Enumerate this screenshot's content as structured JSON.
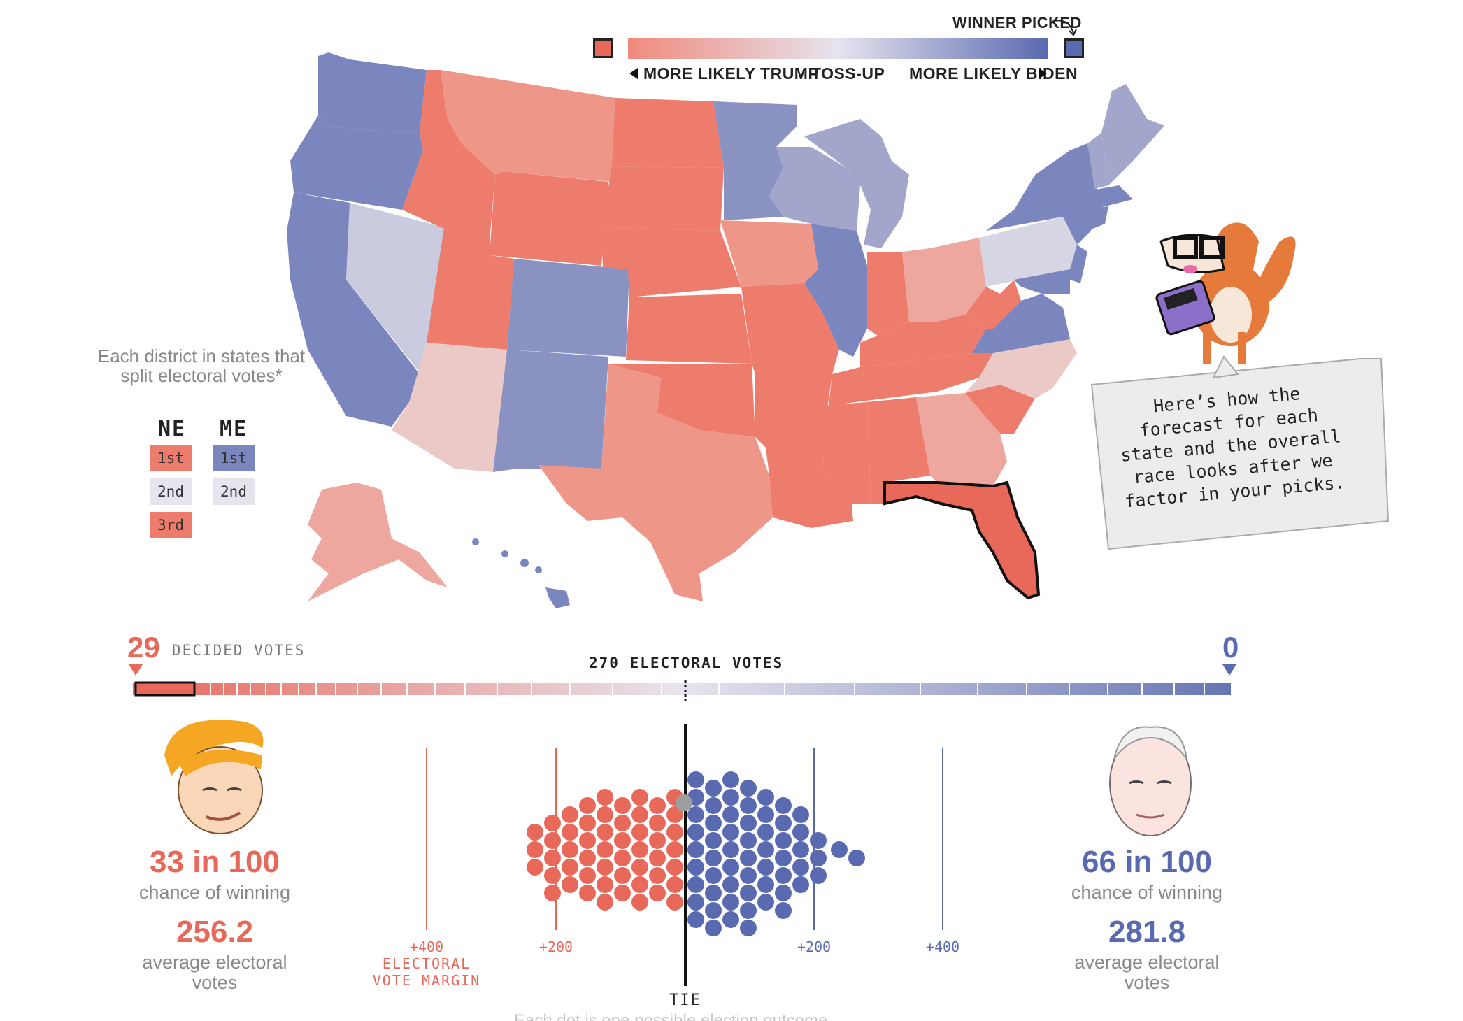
{
  "legend": {
    "winner_picked": "WINNER PICKED",
    "more_likely_trump": "MORE LIKELY TRUMP",
    "toss_up": "TOSS-UP",
    "more_likely_biden": "MORE LIKELY BIDEN",
    "colors": {
      "trump_strong": "#e8685a",
      "trump_light": "#f0a398",
      "toss": "#e8e4ee",
      "biden_light": "#a3a6cb",
      "biden_strong": "#5a6ab0"
    }
  },
  "districts": {
    "title": "Each district in states that split electoral votes*",
    "ne": {
      "label": "NE",
      "items": [
        "1st",
        "2nd",
        "3rd"
      ]
    },
    "me": {
      "label": "ME",
      "items": [
        "1st",
        "2nd"
      ]
    }
  },
  "callout": {
    "text": "Here’s how the forecast for each state and the overall race looks after we factor in your picks."
  },
  "bar": {
    "trump_decided": "29",
    "decided_label": "DECIDED VOTES",
    "center_label": "270 ELECTORAL VOTES",
    "biden_decided": "0"
  },
  "trump": {
    "chance": "33 in 100",
    "chance_label": "chance of winning",
    "avg": "256.2",
    "avg_label": "average electoral votes"
  },
  "biden": {
    "chance": "66 in 100",
    "chance_label": "chance of winning",
    "avg": "281.8",
    "avg_label": "average electoral votes"
  },
  "axis": {
    "left_400": "+400",
    "left_200": "+200",
    "right_200": "+200",
    "right_400": "+400",
    "margin_label_1": "ELECTORAL",
    "margin_label_2": "VOTE MARGIN",
    "tie": "TIE"
  },
  "footer_note": "Each dot is one possible election outcome"
}
